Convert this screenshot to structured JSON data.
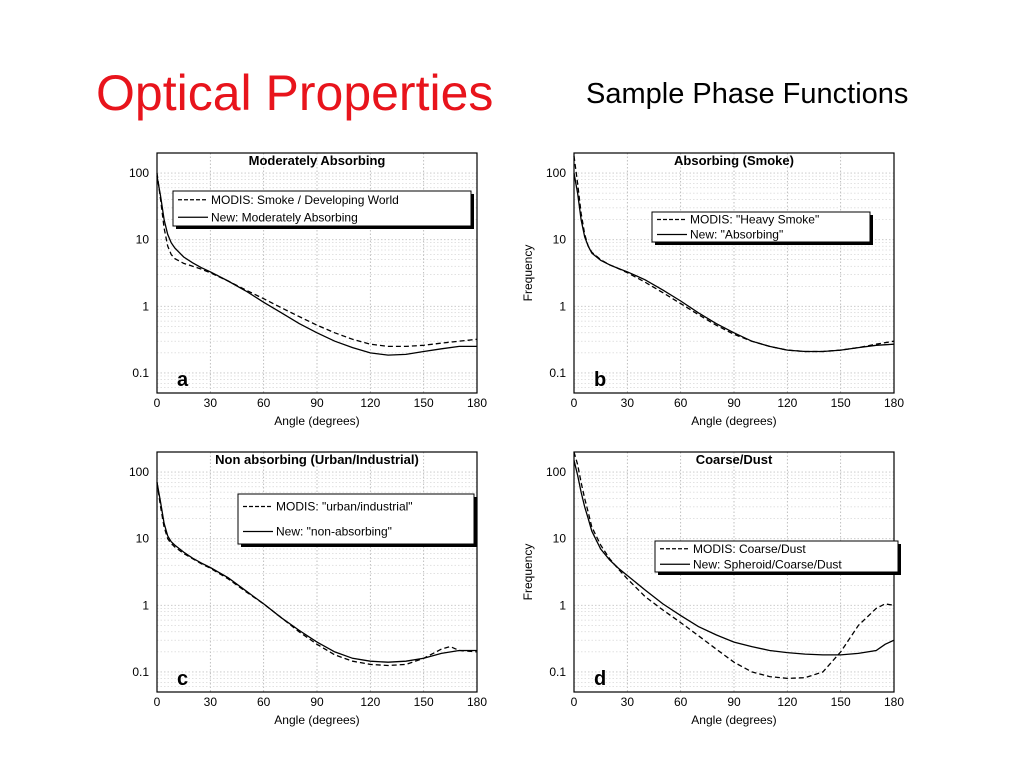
{
  "slide": {
    "title": "Optical Properties",
    "subtitle": "Sample Phase Functions"
  },
  "chart_data": [
    {
      "type": "line",
      "panel_label": "a",
      "title": "Moderately Absorbing",
      "xlabel": "Angle (degrees)",
      "ylabel": "",
      "xlim": [
        0,
        180
      ],
      "ylim": [
        0.05,
        200
      ],
      "yscale": "log",
      "xticks": [
        "0",
        "30",
        "60",
        "90",
        "120",
        "150",
        "180"
      ],
      "yticks": [
        "0.1",
        "1",
        "10",
        "100"
      ],
      "grid": true,
      "legend_position": "top-right",
      "series": [
        {
          "name": "MODIS: Smoke / Developing World",
          "style": "dashed",
          "x": [
            0,
            2,
            4,
            6,
            8,
            10,
            15,
            20,
            25,
            30,
            40,
            50,
            60,
            70,
            80,
            90,
            100,
            110,
            120,
            130,
            140,
            150,
            160,
            170,
            180
          ],
          "y": [
            100,
            40,
            15,
            8,
            6,
            5.2,
            4.4,
            4,
            3.6,
            3.2,
            2.4,
            1.75,
            1.3,
            0.95,
            0.7,
            0.52,
            0.4,
            0.32,
            0.27,
            0.25,
            0.25,
            0.26,
            0.28,
            0.3,
            0.32
          ]
        },
        {
          "name": "New: Moderately Absorbing",
          "style": "solid",
          "x": [
            0,
            2,
            4,
            6,
            8,
            10,
            15,
            20,
            25,
            30,
            40,
            50,
            60,
            70,
            80,
            90,
            100,
            110,
            120,
            130,
            140,
            150,
            160,
            170,
            180
          ],
          "y": [
            90,
            45,
            20,
            12,
            9,
            7.5,
            5.5,
            4.5,
            3.8,
            3.3,
            2.4,
            1.7,
            1.15,
            0.8,
            0.55,
            0.4,
            0.3,
            0.24,
            0.2,
            0.185,
            0.19,
            0.21,
            0.23,
            0.25,
            0.25
          ]
        }
      ]
    },
    {
      "type": "line",
      "panel_label": "b",
      "title": "Absorbing (Smoke)",
      "xlabel": "Angle (degrees)",
      "ylabel": "Frequency",
      "xlim": [
        0,
        180
      ],
      "ylim": [
        0.05,
        200
      ],
      "yscale": "log",
      "xticks": [
        "0",
        "30",
        "60",
        "90",
        "120",
        "150",
        "180"
      ],
      "yticks": [
        "0.1",
        "1",
        "10",
        "100"
      ],
      "grid": true,
      "legend_position": "top-right",
      "series": [
        {
          "name": "MODIS: \"Heavy Smoke\"",
          "style": "dashed",
          "x": [
            0,
            2,
            4,
            6,
            8,
            10,
            15,
            20,
            25,
            30,
            40,
            50,
            60,
            70,
            80,
            90,
            100,
            110,
            120,
            130,
            140,
            150,
            160,
            170,
            180
          ],
          "y": [
            180,
            70,
            25,
            12,
            8,
            6.5,
            5,
            4.2,
            3.7,
            3.2,
            2.3,
            1.6,
            1.1,
            0.75,
            0.52,
            0.38,
            0.3,
            0.25,
            0.22,
            0.21,
            0.21,
            0.22,
            0.24,
            0.27,
            0.3
          ]
        },
        {
          "name": "New: \"Absorbing\"",
          "style": "solid",
          "x": [
            0,
            2,
            4,
            6,
            8,
            10,
            15,
            20,
            25,
            30,
            40,
            50,
            60,
            70,
            80,
            90,
            100,
            110,
            120,
            130,
            140,
            150,
            160,
            170,
            180
          ],
          "y": [
            100,
            50,
            20,
            11,
            8,
            6.3,
            4.9,
            4.2,
            3.7,
            3.3,
            2.5,
            1.75,
            1.2,
            0.8,
            0.55,
            0.4,
            0.3,
            0.25,
            0.22,
            0.21,
            0.21,
            0.22,
            0.24,
            0.26,
            0.27
          ]
        }
      ]
    },
    {
      "type": "line",
      "panel_label": "c",
      "title": "Non absorbing (Urban/Industrial)",
      "xlabel": "Angle (degrees)",
      "ylabel": "",
      "xlim": [
        0,
        180
      ],
      "ylim": [
        0.05,
        200
      ],
      "yscale": "log",
      "xticks": [
        "0",
        "30",
        "60",
        "90",
        "120",
        "150",
        "180"
      ],
      "yticks": [
        "0.1",
        "1",
        "10",
        "100"
      ],
      "grid": true,
      "legend_position": "top-right",
      "series": [
        {
          "name": "MODIS:  \"urban/industrial\"",
          "style": "dashed",
          "x": [
            0,
            2,
            4,
            6,
            8,
            10,
            15,
            20,
            25,
            30,
            40,
            50,
            60,
            70,
            80,
            90,
            100,
            110,
            120,
            130,
            140,
            150,
            160,
            165,
            170,
            180
          ],
          "y": [
            70,
            30,
            15,
            10,
            8.5,
            7.5,
            6,
            5,
            4.2,
            3.6,
            2.5,
            1.6,
            1.05,
            0.65,
            0.4,
            0.26,
            0.18,
            0.145,
            0.13,
            0.125,
            0.13,
            0.16,
            0.22,
            0.24,
            0.21,
            0.2
          ]
        },
        {
          "name": "New: \"non-absorbing\"",
          "style": "solid",
          "x": [
            0,
            2,
            4,
            6,
            8,
            10,
            15,
            20,
            25,
            30,
            40,
            50,
            60,
            70,
            80,
            90,
            100,
            110,
            120,
            130,
            140,
            150,
            160,
            170,
            180
          ],
          "y": [
            70,
            35,
            17,
            11,
            9,
            8,
            6.3,
            5.1,
            4.3,
            3.7,
            2.6,
            1.65,
            1.05,
            0.65,
            0.42,
            0.28,
            0.2,
            0.16,
            0.145,
            0.14,
            0.145,
            0.16,
            0.19,
            0.21,
            0.21
          ]
        }
      ]
    },
    {
      "type": "line",
      "panel_label": "d",
      "title": "Coarse/Dust",
      "xlabel": "Angle (degrees)",
      "ylabel": "Frequency",
      "xlim": [
        0,
        180
      ],
      "ylim": [
        0.05,
        200
      ],
      "yscale": "log",
      "xticks": [
        "0",
        "30",
        "60",
        "90",
        "120",
        "150",
        "180"
      ],
      "yticks": [
        "0.1",
        "1",
        "10",
        "100"
      ],
      "grid": true,
      "legend_position": "top-right",
      "series": [
        {
          "name": "MODIS: Coarse/Dust",
          "style": "dashed",
          "x": [
            0,
            2,
            4,
            6,
            8,
            10,
            15,
            20,
            25,
            30,
            40,
            50,
            60,
            70,
            80,
            90,
            100,
            110,
            120,
            130,
            140,
            150,
            160,
            170,
            175,
            180
          ],
          "y": [
            200,
            130,
            70,
            40,
            25,
            15,
            8,
            5,
            3.5,
            2.5,
            1.35,
            0.85,
            0.55,
            0.35,
            0.22,
            0.14,
            0.1,
            0.085,
            0.08,
            0.082,
            0.1,
            0.2,
            0.5,
            0.9,
            1.05,
            1.0
          ]
        },
        {
          "name": "New: Spheroid/Coarse/Dust",
          "style": "solid",
          "x": [
            0,
            2,
            4,
            6,
            8,
            10,
            15,
            20,
            25,
            30,
            40,
            50,
            60,
            70,
            80,
            90,
            100,
            110,
            120,
            130,
            140,
            150,
            160,
            170,
            175,
            180
          ],
          "y": [
            150,
            90,
            50,
            30,
            20,
            13,
            7,
            4.8,
            3.6,
            2.8,
            1.7,
            1.05,
            0.7,
            0.48,
            0.36,
            0.28,
            0.24,
            0.21,
            0.195,
            0.185,
            0.18,
            0.18,
            0.19,
            0.21,
            0.26,
            0.3
          ]
        }
      ]
    }
  ]
}
